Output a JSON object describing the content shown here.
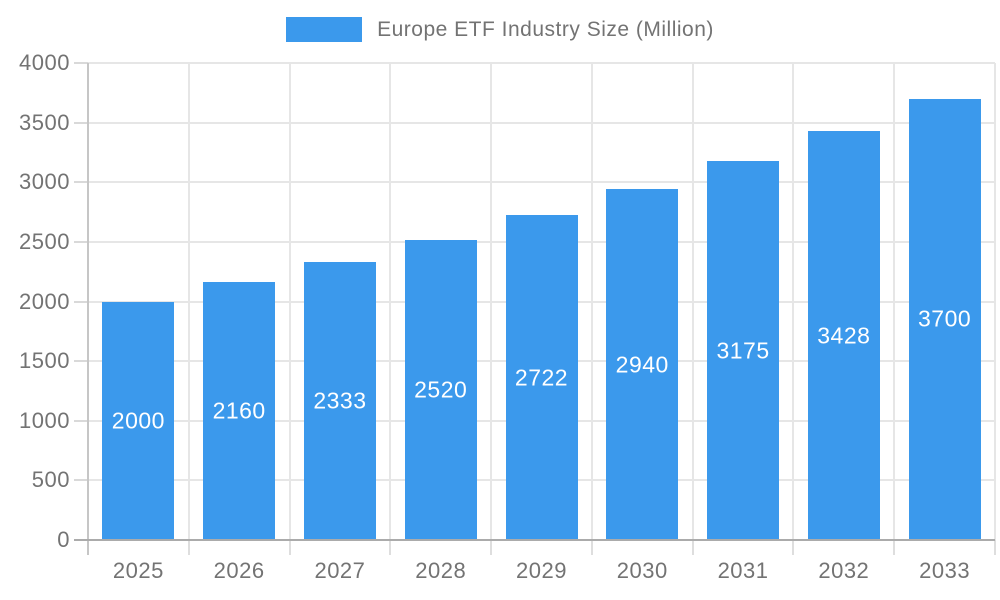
{
  "chart_data": {
    "type": "bar",
    "title": "Europe ETF Industry Size (Million)",
    "categories": [
      "2025",
      "2026",
      "2027",
      "2028",
      "2029",
      "2030",
      "2031",
      "2032",
      "2033"
    ],
    "values": [
      2000,
      2160,
      2333,
      2520,
      2722,
      2940,
      3175,
      3428,
      3700
    ],
    "xlabel": "",
    "ylabel": "",
    "ylim": [
      0,
      4000
    ],
    "yticks": [
      0,
      500,
      1000,
      1500,
      2000,
      2500,
      3000,
      3500,
      4000
    ],
    "grid": true,
    "legend_position": "top-center",
    "value_label_position": "inside-middle",
    "colors": {
      "bar": "#3b99ec",
      "value_label": "#ffffff",
      "axis_text": "#737373",
      "gridline": "#e6e6e6",
      "y_axis_line": "#c6c6c6",
      "x_axis_line": "#ababab",
      "background": "#ffffff"
    }
  }
}
